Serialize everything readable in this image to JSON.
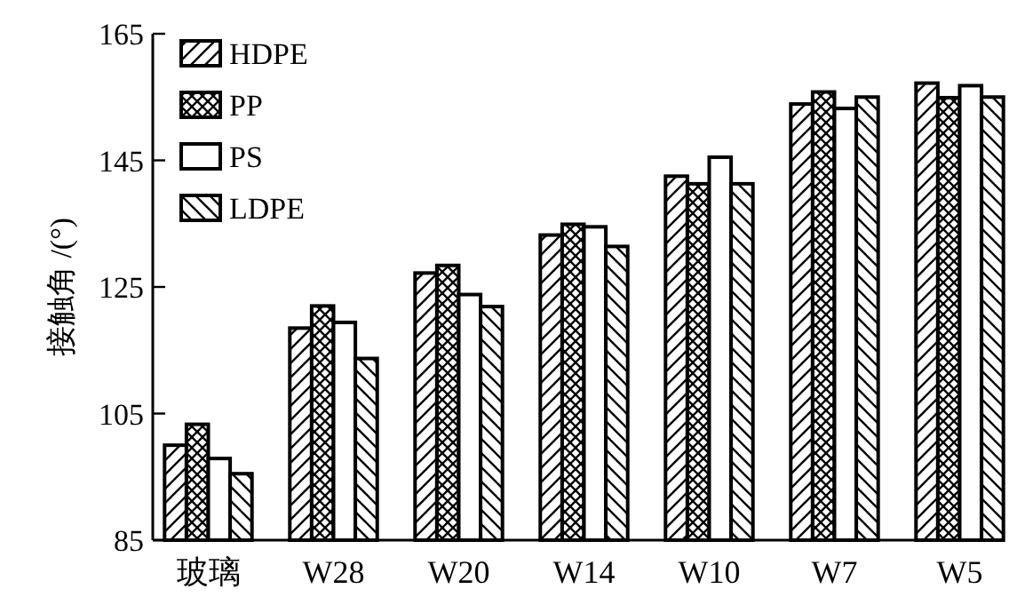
{
  "chart_data": {
    "type": "bar",
    "ylabel": "接触角 /(°)",
    "categories": [
      "玻璃",
      "W28",
      "W20",
      "W14",
      "W10",
      "W7",
      "W5"
    ],
    "series": [
      {
        "name": "HDPE",
        "color": "#000000",
        "values": [
          100,
          118.5,
          127.2,
          133.2,
          142.5,
          153.9,
          157.2
        ]
      },
      {
        "name": "PP",
        "color": "#000000",
        "values": [
          103.3,
          122,
          128.4,
          134.9,
          141.3,
          155.8,
          154.9
        ]
      },
      {
        "name": "PS",
        "color": "#000000",
        "values": [
          97.9,
          119.4,
          123.8,
          134.5,
          145.5,
          153.2,
          156.8
        ]
      },
      {
        "name": "LDPE",
        "color": "#000000",
        "values": [
          95.5,
          113.7,
          121.9,
          131.4,
          141.3,
          155,
          155
        ]
      }
    ],
    "ylim": [
      85,
      165
    ],
    "yticks": [
      85,
      105,
      125,
      145,
      165
    ],
    "grid": false,
    "legend": "top left"
  }
}
